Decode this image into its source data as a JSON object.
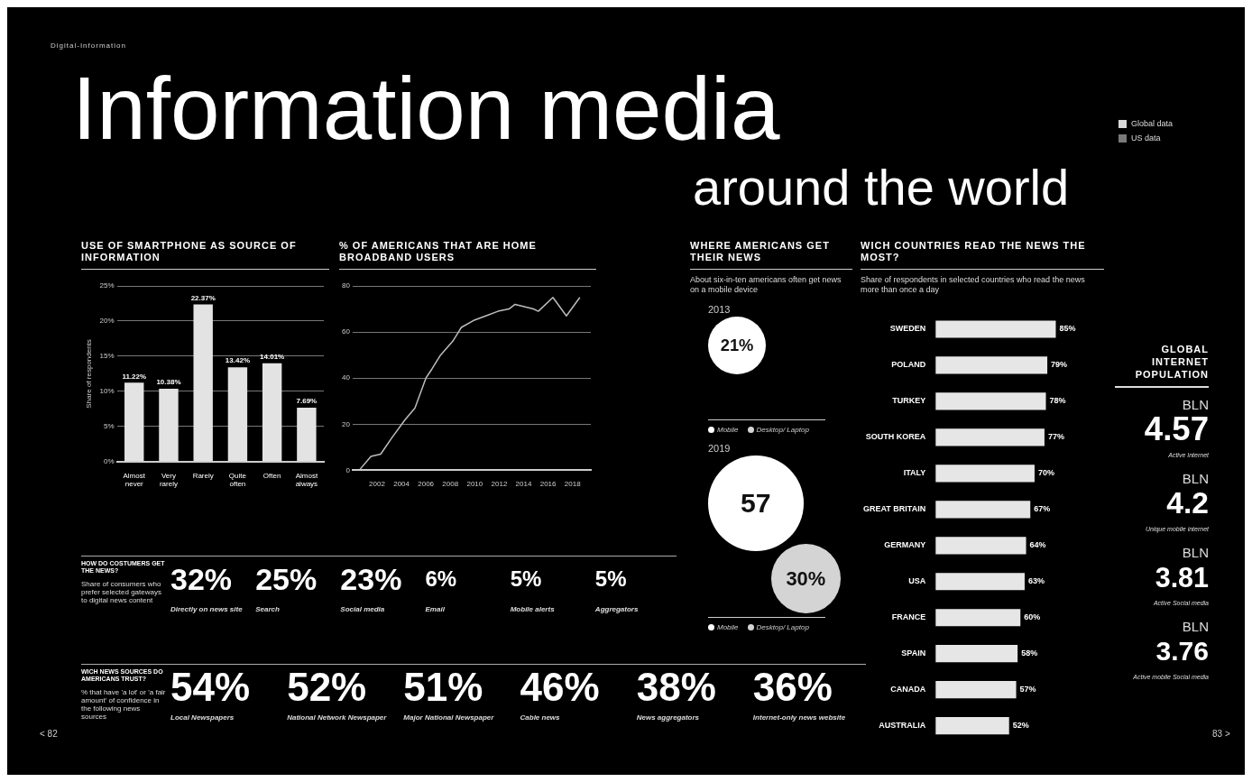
{
  "chart_data": [
    {
      "type": "other",
      "title": "Information media",
      "subtitle": "around the world",
      "categories": [
        "Global data",
        "US data"
      ],
      "colors": [
        "#d9d9d9",
        "#7a7a7a"
      ],
      "annotations": [
        "Digital-Information",
        "< 82",
        "83 >"
      ]
    },
    {
      "type": "bar",
      "title": "USE OF SMARTPHONE AS SOURCE OF INFORMATION",
      "ylabel": "Share of respondents",
      "categories": [
        "Almost never",
        "Very rarely",
        "Rarely",
        "Quite often",
        "Often",
        "Almost always"
      ],
      "values": [
        11.22,
        10.38,
        22.37,
        13.42,
        14.01,
        7.69
      ],
      "value_labels": [
        "11.22%",
        "10.38%",
        "22.37%",
        "13.42%",
        "14.01%",
        "7.69%"
      ],
      "color": "#e3e3e3",
      "ylim": [
        0,
        25
      ],
      "yticks": [
        {
          "value": 0,
          "label": "0%"
        },
        {
          "value": 5,
          "label": "5%"
        },
        {
          "value": 10,
          "label": "10%"
        },
        {
          "value": 15,
          "label": "15%"
        },
        {
          "value": 20,
          "label": "20%"
        },
        {
          "value": 25,
          "label": "25%"
        }
      ],
      "grid": "y"
    },
    {
      "type": "line",
      "title": "% OF AMERICANS THAT ARE HOME BROADBAND USERS",
      "x": [
        2000.6,
        2001.5,
        2002.3,
        2003.2,
        2004.3,
        2005.1,
        2006,
        2006.5,
        2007.2,
        2008.2,
        2008.9,
        2009.9,
        2010.9,
        2011.9,
        2012.8,
        2013.3,
        2014.8,
        2015.2,
        2016.4,
        2017.5,
        2018.6
      ],
      "values": [
        0.4,
        6,
        7,
        14,
        22,
        27,
        40,
        44,
        50,
        56,
        62,
        65,
        67,
        69,
        70,
        72,
        70,
        69,
        75,
        67,
        75
      ],
      "color": "#bdbdbd",
      "xlim": [
        2000,
        2019.5
      ],
      "xticks": [
        2002,
        2004,
        2006,
        2008,
        2010,
        2012,
        2014,
        2016,
        2018
      ],
      "ylim": [
        0,
        80
      ],
      "yticks": [
        0,
        20,
        40,
        60,
        80
      ],
      "grid": "y"
    },
    {
      "type": "other",
      "title": "WHERE AMERICANS GET THEIR NEWS",
      "subtitle": "About six-in-ten americans often get news on a mobile device",
      "categories": [
        "2013",
        "2019"
      ],
      "legend": "bottom",
      "series": [
        {
          "name": "Mobile",
          "color": "#ffffff",
          "values": [
            21,
            57
          ],
          "value_labels": [
            "21%",
            "57"
          ]
        },
        {
          "name": "Desktop/ Laptop",
          "color": "#d4d4d4",
          "values": [
            null,
            30
          ],
          "value_labels": [
            null,
            "30%"
          ]
        }
      ]
    },
    {
      "type": "bar",
      "orientation": "horizontal",
      "title": "WICH COUNTRIES READ THE NEWS THE MOST?",
      "subtitle": "Share of respondents in selected countries who read the news more than once a day",
      "categories": [
        "SWEDEN",
        "POLAND",
        "TURKEY",
        "SOUTH KOREA",
        "ITALY",
        "GREAT BRITAIN",
        "GERMANY",
        "USA",
        "FRANCE",
        "SPAIN",
        "CANADA",
        "AUSTRALIA"
      ],
      "values": [
        85,
        79,
        78,
        77,
        70,
        67,
        64,
        63,
        60,
        58,
        57,
        52
      ],
      "value_labels": [
        "85%",
        "79%",
        "78%",
        "77%",
        "70%",
        "67%",
        "64%",
        "63%",
        "60%",
        "58%",
        "57%",
        "52%"
      ],
      "color": "#e6e6e6"
    },
    {
      "type": "other",
      "title": "GLOBAL INTERNET POPULATION",
      "ylabel": "BLN",
      "categories": [
        "Active Internet",
        "Unique mobile internet",
        "Active Social media",
        "Active mobile Social media"
      ],
      "values": [
        4.57,
        4.2,
        3.81,
        3.76
      ],
      "value_labels": [
        "4.57",
        "4.2",
        "3.81",
        "3.76"
      ]
    },
    {
      "type": "other",
      "title": "HOW DO COSTUMERS GET THE NEWS?",
      "subtitle": "Share of consumers who prefer selected gateways to digital news content",
      "categories": [
        "Directly on news site",
        "Search",
        "Social media",
        "Email",
        "Mobile alerts",
        "Aggregators"
      ],
      "values": [
        32,
        25,
        23,
        6,
        5,
        5
      ],
      "value_labels": [
        "32%",
        "25%",
        "23%",
        "6%",
        "5%",
        "5%"
      ]
    },
    {
      "type": "other",
      "title": "WICH NEWS SOURCES DO AMERICANS TRUST?",
      "subtitle": "% that have 'a lot' or 'a fair amount' of confidence in the following news sources",
      "categories": [
        "Local Newspapers",
        "National Network Newspaper",
        "Major National Newspaper",
        "Cable news",
        "News aggregators",
        "Internet-only news website"
      ],
      "values": [
        54,
        52,
        51,
        46,
        38,
        36
      ],
      "value_labels": [
        "54%",
        "52%",
        "51%",
        "46%",
        "38%",
        "36%"
      ]
    }
  ]
}
